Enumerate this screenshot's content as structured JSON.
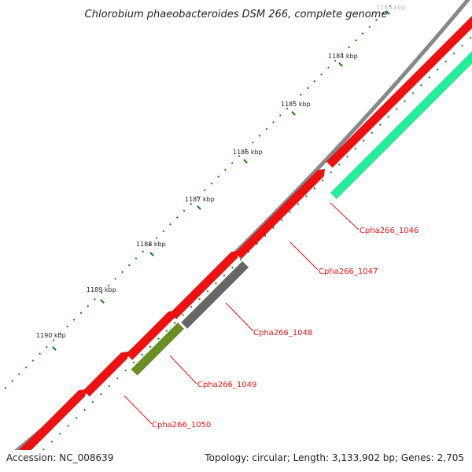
{
  "title": "Chlorobium phaeobacteroides DSM 266, complete genome",
  "footer": {
    "accession": "Accession: NC_008639",
    "summary": "Topology: circular; Length: 3,133,902 bp; Genes: 2,705"
  },
  "kbp_labels": [
    "1183 kbp",
    "1184 kbp",
    "1185 kbp",
    "1186 kbp",
    "1187 kbp",
    "1188 kbp",
    "1189 kbp",
    "1190 kbp"
  ],
  "gene_labels": [
    "Cpha266_1046",
    "Cpha266_1047",
    "Cpha266_1048",
    "Cpha266_1049",
    "Cpha266_1050"
  ],
  "colors": {
    "backbone": "#888888",
    "forward_gene": "#ee1111",
    "rrna": "#22ee99",
    "gray_gene": "#666666",
    "olive_gene": "#6b8e23",
    "callout": "#ee1111",
    "tick": "#1e7a1e"
  }
}
